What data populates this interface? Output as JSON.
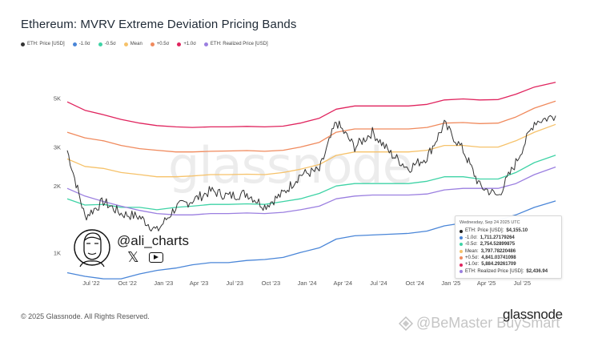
{
  "header": {
    "title": "Ethereum: MVRV Extreme Deviation Pricing Bands"
  },
  "footer": {
    "copyright": "© 2025 Glassnode. All Rights Reserved.",
    "brand": "glassnode",
    "watermark": "@BeMaster BuySmart"
  },
  "overlay": {
    "handle": "@ali_charts",
    "background_watermark": "glassnode"
  },
  "tooltip": {
    "date": "Wednesday, Sep 24 2025 UTC",
    "rows": [
      {
        "label": "ETH: Price [USD]: ",
        "value": "$4,155.10",
        "color": "#222222"
      },
      {
        "label": "-1.0σ: ",
        "value": "1,711.27179264",
        "color": "#4a86d8"
      },
      {
        "label": "-0.5σ: ",
        "value": "2,754.52899875",
        "color": "#3fd3a6"
      },
      {
        "label": "Mean: ",
        "value": "3,797.78220486",
        "color": "#f6c26a"
      },
      {
        "label": "+0.5σ: ",
        "value": "4,841.03741098",
        "color": "#f08a5d"
      },
      {
        "label": "+1.0σ: ",
        "value": "5,884.29261709",
        "color": "#e0245e"
      },
      {
        "label": "ETH: Realized Price [USD]: ",
        "value": "$2,436.94",
        "color": "#9b7fe0"
      }
    ]
  },
  "chart_data": {
    "type": "line",
    "title": "Ethereum: MVRV Extreme Deviation Pricing Bands",
    "y_scale": "log",
    "ylim": [
      800,
      7000
    ],
    "y_ticks": [
      {
        "value": 1000,
        "label": "1K"
      },
      {
        "value": 2000,
        "label": "2K"
      },
      {
        "value": 3000,
        "label": "3K"
      },
      {
        "value": 5000,
        "label": "5K"
      }
    ],
    "x_range": [
      "2022-05-01",
      "2025-09-30"
    ],
    "x_ticks": [
      {
        "date": "2022-07-01",
        "label": "Jul '22"
      },
      {
        "date": "2022-10-01",
        "label": "Oct '22"
      },
      {
        "date": "2023-01-01",
        "label": "Jan '23"
      },
      {
        "date": "2023-04-01",
        "label": "Apr '23"
      },
      {
        "date": "2023-07-01",
        "label": "Jul '23"
      },
      {
        "date": "2023-10-01",
        "label": "Oct '23"
      },
      {
        "date": "2024-01-01",
        "label": "Jan '24"
      },
      {
        "date": "2024-04-01",
        "label": "Apr '24"
      },
      {
        "date": "2024-07-01",
        "label": "Jul '24"
      },
      {
        "date": "2024-10-01",
        "label": "Oct '24"
      },
      {
        "date": "2025-01-01",
        "label": "Jan '25"
      },
      {
        "date": "2025-04-01",
        "label": "Apr '25"
      },
      {
        "date": "2025-07-01",
        "label": "Jul '25"
      }
    ],
    "legend_position": "top-left",
    "grid": false,
    "x": [
      "2022-05-01",
      "2022-06-15",
      "2022-08-01",
      "2022-09-15",
      "2022-11-01",
      "2022-12-15",
      "2023-02-01",
      "2023-03-15",
      "2023-05-01",
      "2023-06-15",
      "2023-08-01",
      "2023-09-15",
      "2023-11-01",
      "2023-12-15",
      "2024-02-01",
      "2024-03-15",
      "2024-05-01",
      "2024-06-15",
      "2024-08-01",
      "2024-09-15",
      "2024-11-01",
      "2024-12-15",
      "2025-02-01",
      "2025-03-15",
      "2025-05-01",
      "2025-06-15",
      "2025-08-01",
      "2025-09-24"
    ],
    "series": [
      {
        "name": "ETH: Price [USD]",
        "color": "#333333",
        "values": [
          2900,
          1450,
          1700,
          1500,
          1450,
          1250,
          1600,
          1720,
          1900,
          1800,
          1850,
          1620,
          1850,
          2250,
          2350,
          3900,
          3000,
          3500,
          2800,
          2400,
          2700,
          3800,
          2900,
          2000,
          1800,
          2550,
          3900,
          4155
        ]
      },
      {
        "name": "-1.0σ",
        "color": "#4a86d8",
        "values": [
          810,
          780,
          760,
          760,
          800,
          830,
          850,
          880,
          900,
          900,
          920,
          930,
          950,
          1000,
          1050,
          1150,
          1190,
          1200,
          1210,
          1220,
          1250,
          1320,
          1360,
          1380,
          1400,
          1480,
          1600,
          1711
        ]
      },
      {
        "name": "-0.5σ",
        "color": "#3fd3a6",
        "values": [
          1750,
          1640,
          1650,
          1600,
          1600,
          1560,
          1600,
          1620,
          1650,
          1650,
          1660,
          1650,
          1700,
          1750,
          1850,
          2000,
          2050,
          2050,
          2050,
          2050,
          2100,
          2200,
          2200,
          2150,
          2150,
          2300,
          2550,
          2755
        ]
      },
      {
        "name": "Mean",
        "color": "#f6c26a",
        "values": [
          2650,
          2450,
          2400,
          2300,
          2250,
          2200,
          2200,
          2220,
          2250,
          2250,
          2260,
          2250,
          2300,
          2380,
          2500,
          2750,
          2850,
          2850,
          2850,
          2850,
          2900,
          3050,
          3050,
          3000,
          3000,
          3200,
          3500,
          3798
        ]
      },
      {
        "name": "+0.5σ",
        "color": "#f08a5d",
        "values": [
          3500,
          3300,
          3200,
          3050,
          2950,
          2900,
          2850,
          2850,
          2870,
          2880,
          2890,
          2870,
          2900,
          3000,
          3150,
          3500,
          3620,
          3620,
          3620,
          3620,
          3680,
          3850,
          3870,
          3830,
          3850,
          4100,
          4500,
          4841
        ]
      },
      {
        "name": "+1.0σ",
        "color": "#e0245e",
        "values": [
          4800,
          4400,
          4200,
          4000,
          3850,
          3750,
          3700,
          3680,
          3700,
          3700,
          3720,
          3700,
          3730,
          3850,
          4050,
          4450,
          4600,
          4600,
          4600,
          4600,
          4680,
          4900,
          4950,
          4900,
          4920,
          5200,
          5600,
          5884
        ]
      },
      {
        "name": "ETH: Realized Price [USD]",
        "color": "#9b7fe0",
        "values": [
          1950,
          1800,
          1700,
          1620,
          1550,
          1500,
          1480,
          1480,
          1500,
          1500,
          1510,
          1500,
          1520,
          1560,
          1620,
          1750,
          1800,
          1820,
          1820,
          1820,
          1840,
          1920,
          1950,
          1950,
          1950,
          2050,
          2250,
          2437
        ]
      }
    ]
  }
}
